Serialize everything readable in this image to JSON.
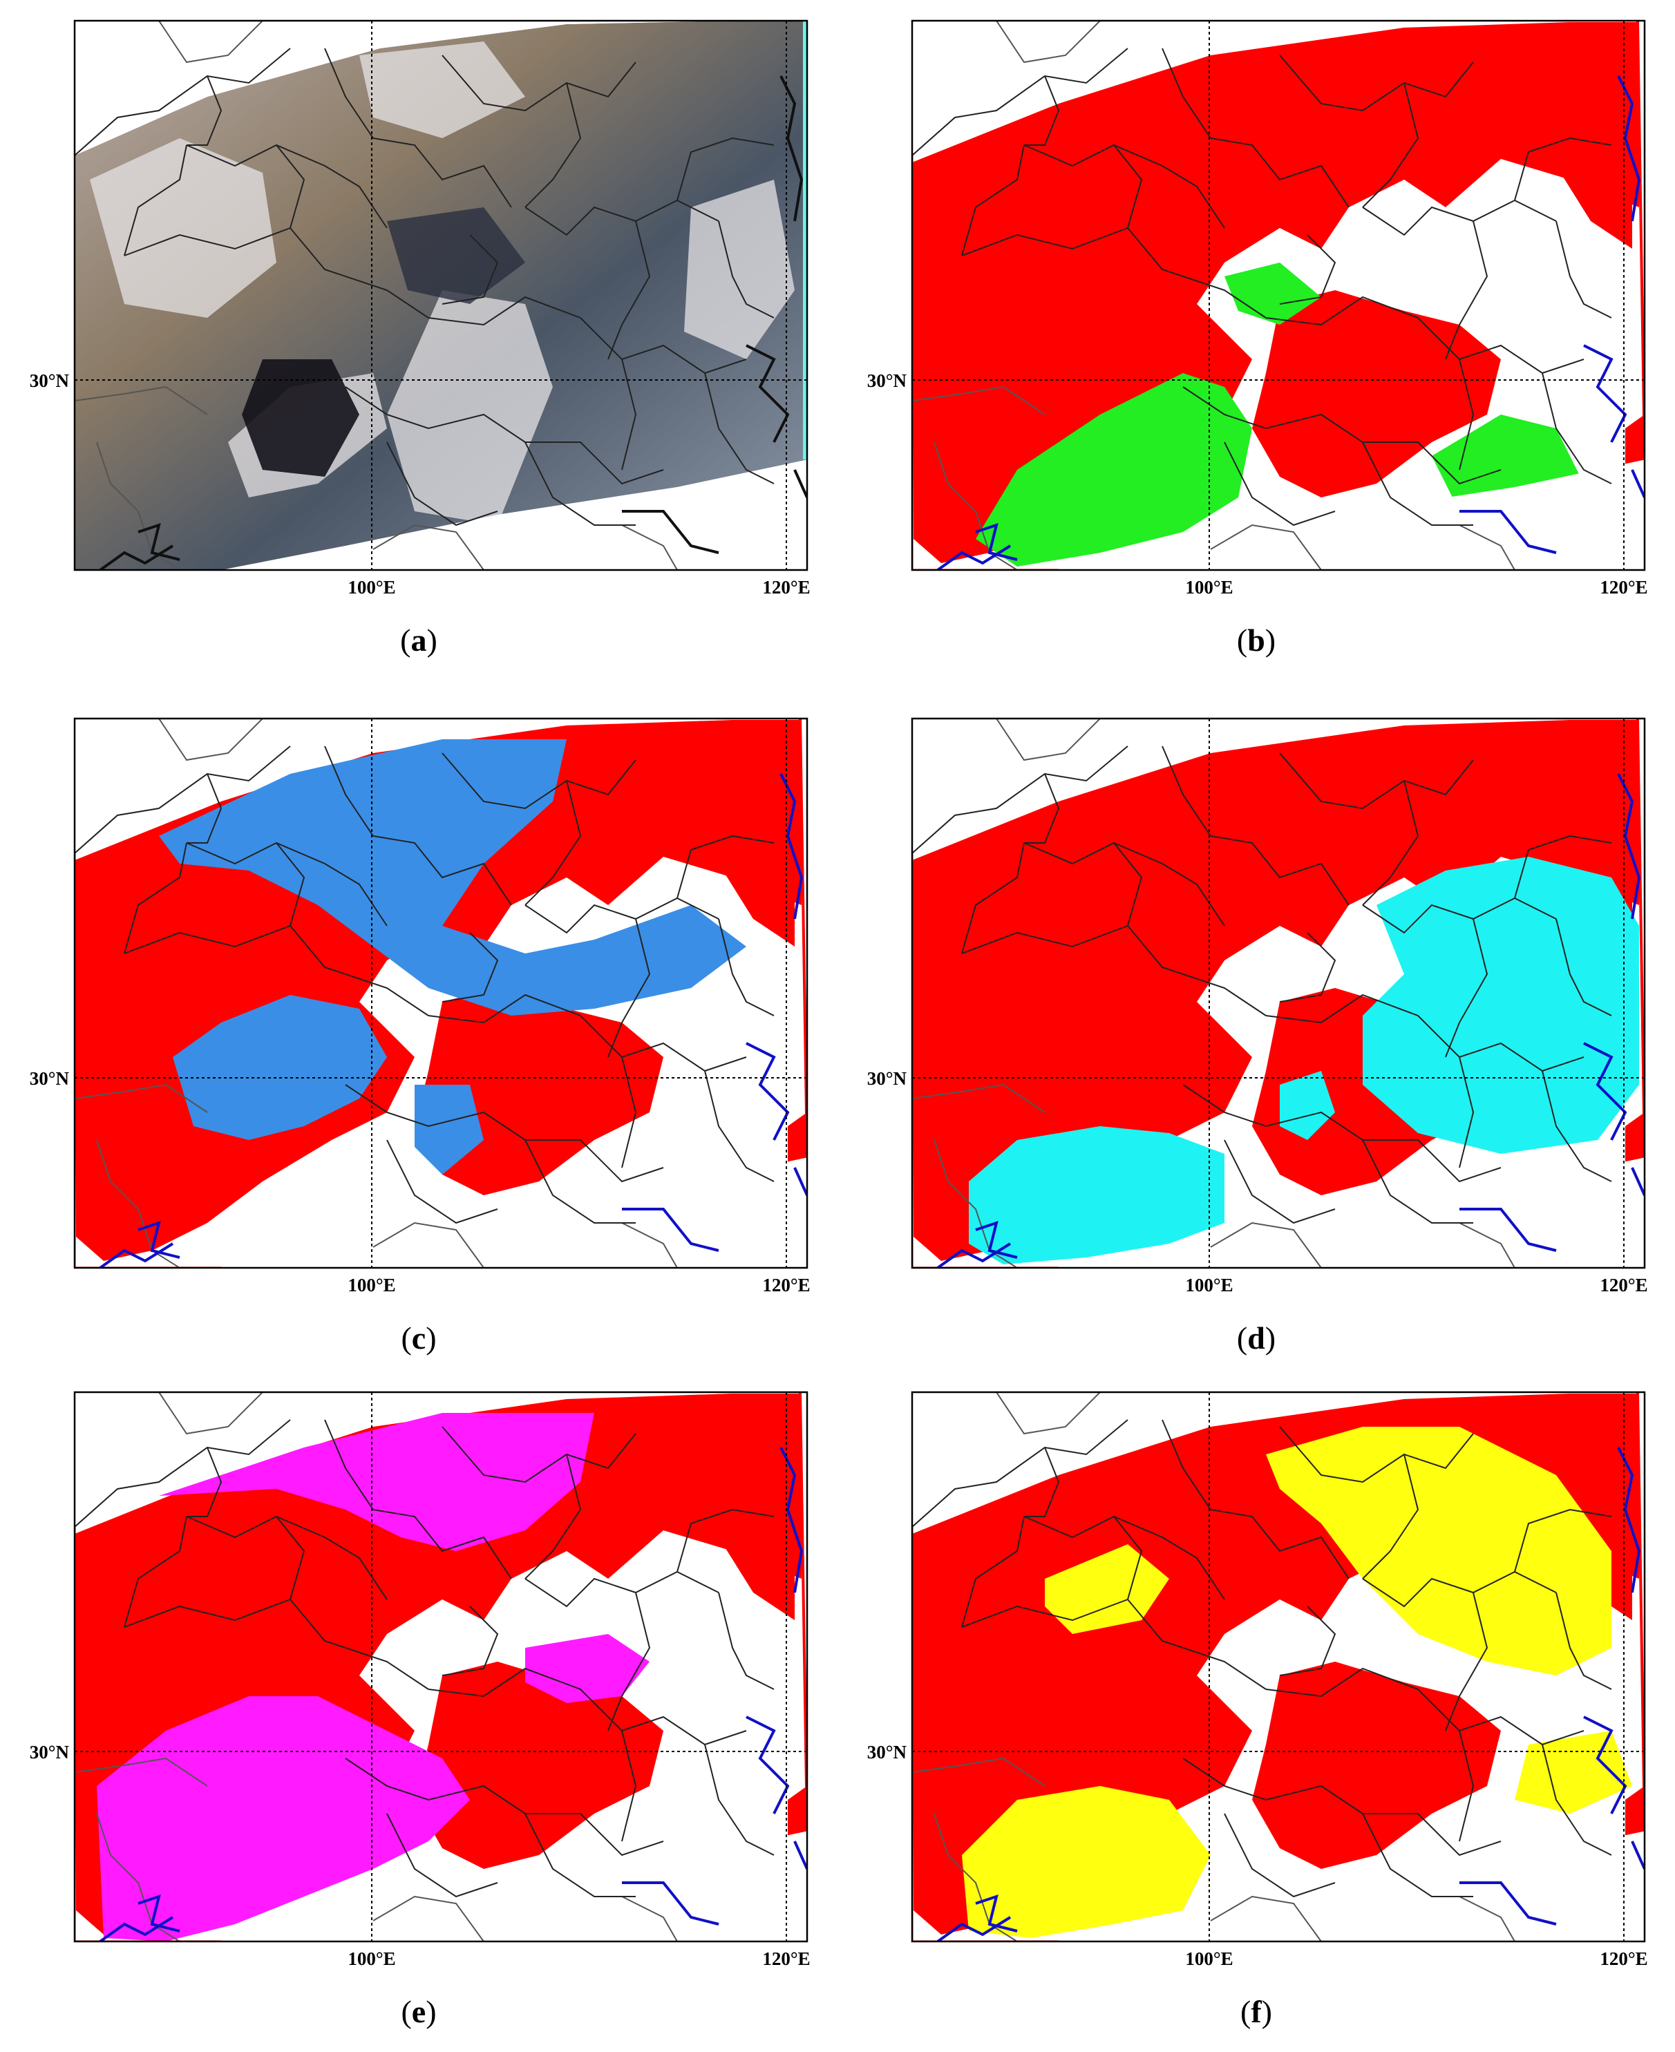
{
  "panels": [
    {
      "id": "a",
      "label": "a",
      "kind": "true-color"
    },
    {
      "id": "b",
      "label": "b",
      "kind": "mask",
      "overlay_color": "#22ee22"
    },
    {
      "id": "c",
      "label": "c",
      "kind": "mask",
      "overlay_color": "#3a8ee6"
    },
    {
      "id": "d",
      "label": "d",
      "kind": "mask",
      "overlay_color": "#1ff2f2"
    },
    {
      "id": "e",
      "label": "e",
      "kind": "mask",
      "overlay_color": "#ff1aff"
    },
    {
      "id": "f",
      "label": "f",
      "kind": "mask",
      "overlay_color": "#ffff10"
    }
  ],
  "axes": {
    "lat_label": "30°N",
    "lon_labels": [
      "100°E",
      "120°E"
    ]
  },
  "colors": {
    "cloud_mask": "#ff0000",
    "coastline": "#1010c8",
    "province_border": "#222222",
    "country_border": "#555555",
    "grid": "#000000"
  }
}
